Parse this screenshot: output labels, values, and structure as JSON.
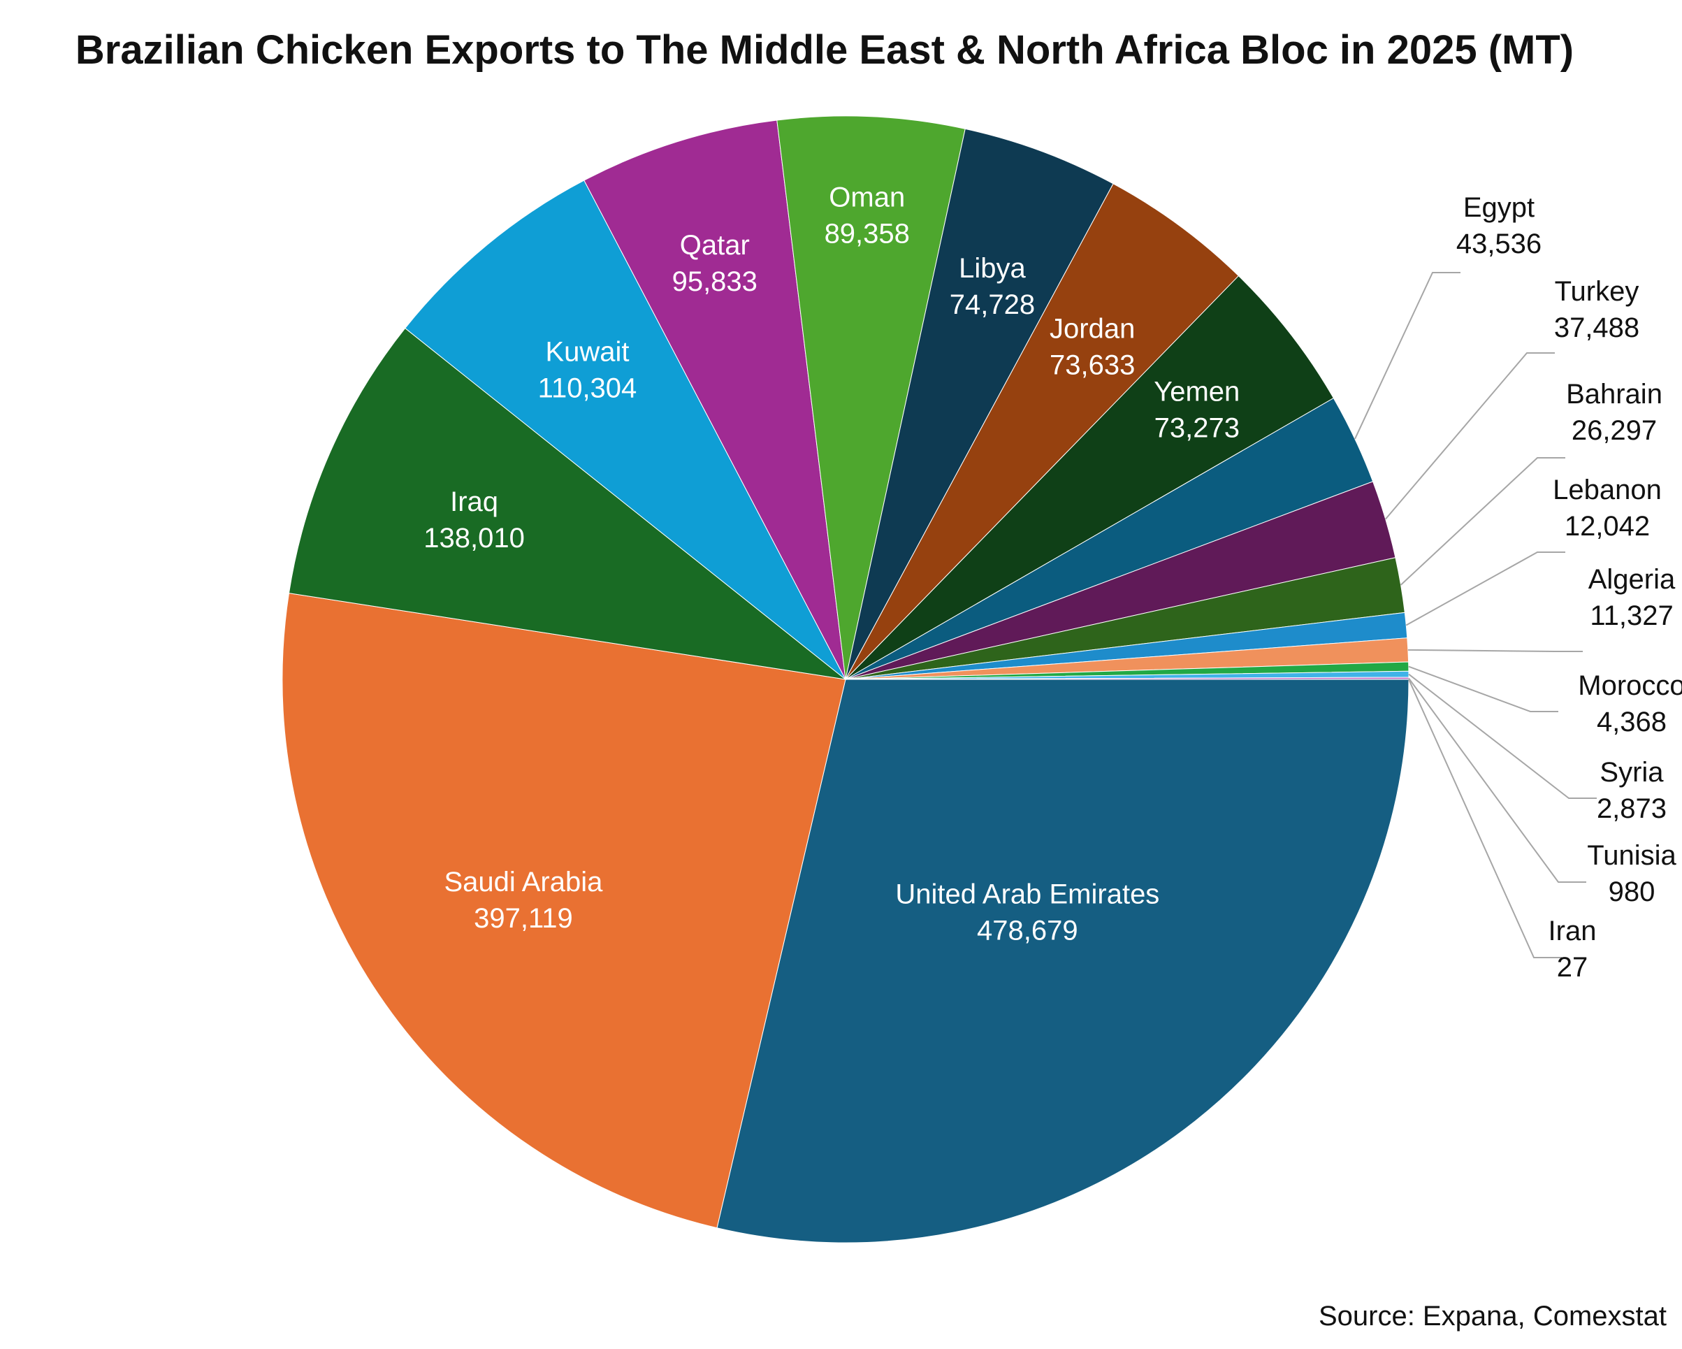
{
  "chart_data": {
    "type": "pie",
    "title": "Brazilian Chicken Exports to The Middle East & North Africa Bloc in 2025 (MT)",
    "slices": [
      {
        "label": "United Arab Emirates",
        "value": 478679,
        "display": "478,679",
        "color": "#155E82"
      },
      {
        "label": "Saudi Arabia",
        "value": 397119,
        "display": "397,119",
        "color": "#E97132"
      },
      {
        "label": "Iraq",
        "value": 138010,
        "display": "138,010",
        "color": "#196B24"
      },
      {
        "label": "Kuwait",
        "value": 110304,
        "display": "110,304",
        "color": "#0F9ED5"
      },
      {
        "label": "Qatar",
        "value": 95833,
        "display": "95,833",
        "color": "#A02B93"
      },
      {
        "label": "Oman",
        "value": 89358,
        "display": "89,358",
        "color": "#4EA72E"
      },
      {
        "label": "Libya",
        "value": 74728,
        "display": "74,728",
        "color": "#0E3A52"
      },
      {
        "label": "Jordan",
        "value": 73633,
        "display": "73,633",
        "color": "#96410F"
      },
      {
        "label": "Yemen",
        "value": 73273,
        "display": "73,273",
        "color": "#0F4017"
      },
      {
        "label": "Egypt",
        "value": 43536,
        "display": "43,536",
        "color": "#0B5C7F"
      },
      {
        "label": "Turkey",
        "value": 37488,
        "display": "37,488",
        "color": "#601A58"
      },
      {
        "label": "Bahrain",
        "value": 26297,
        "display": "26,297",
        "color": "#2E641B"
      },
      {
        "label": "Lebanon",
        "value": 12042,
        "display": "12,042",
        "color": "#1E8CCB"
      },
      {
        "label": "Algeria",
        "value": 11327,
        "display": "11,327",
        "color": "#F0915C"
      },
      {
        "label": "Morocco",
        "value": 4368,
        "display": "4,368",
        "color": "#22A845"
      },
      {
        "label": "Syria",
        "value": 2873,
        "display": "2,873",
        "color": "#40B3E8"
      },
      {
        "label": "Tunisia",
        "value": 980,
        "display": "980",
        "color": "#C266C0"
      },
      {
        "label": "Iran",
        "value": 27,
        "display": "27",
        "color": "#7BC75D"
      }
    ]
  },
  "source": "Source: Expana, Comexstat"
}
